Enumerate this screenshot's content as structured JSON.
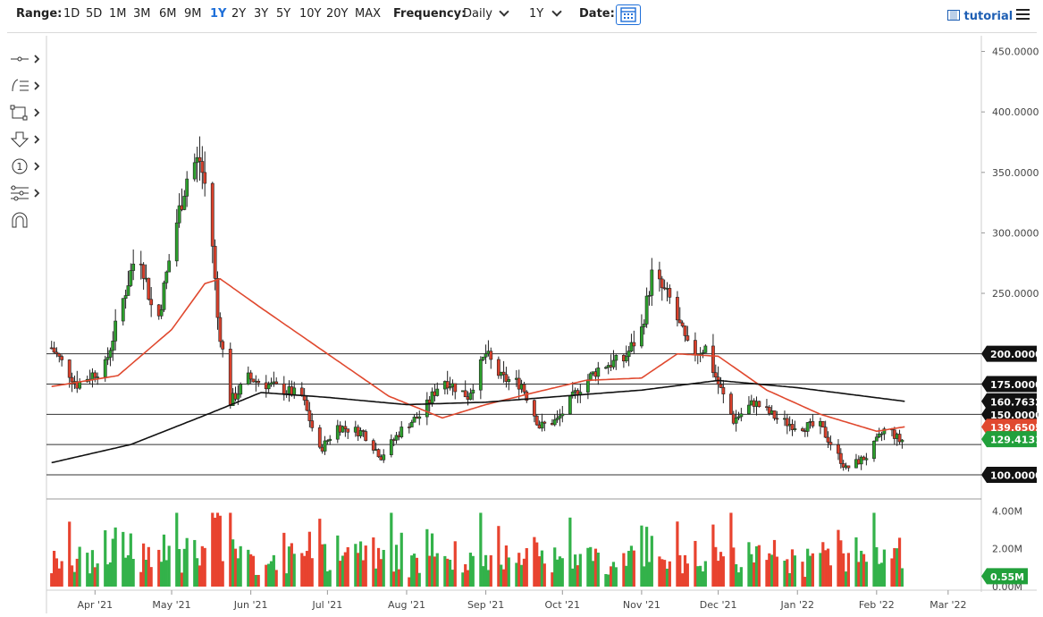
{
  "toolbar": {
    "range_label": "Range:",
    "ranges": [
      "1D",
      "5D",
      "1M",
      "3M",
      "6M",
      "9M",
      "1Y",
      "2Y",
      "3Y",
      "5Y",
      "10Y",
      "20Y",
      "MAX"
    ],
    "active_range": "1Y",
    "frequency_label": "Frequency:",
    "frequency_value": "Daily",
    "period_value": "1Y",
    "date_label": "Date:",
    "tutorial_label": "tutorial"
  },
  "tools": [
    "crosshair-tool",
    "line-tools",
    "shape-tools",
    "arrow-tools",
    "counter-tools",
    "fib-tools",
    "magnet-tool"
  ],
  "chart_data": {
    "type": "candlestick",
    "x_tick_labels": [
      "Apr '21",
      "May '21",
      "Jun '21",
      "Jul '21",
      "Aug '21",
      "Sep '21",
      "Oct '21",
      "Nov '21",
      "Dec '21",
      "Jan '22",
      "Feb '22",
      "Mar '22"
    ],
    "x_tick_dates": [
      "2021-04-01",
      "2021-05-01",
      "2021-06-01",
      "2021-07-01",
      "2021-08-01",
      "2021-09-01",
      "2021-10-01",
      "2021-11-01",
      "2021-12-01",
      "2022-01-01",
      "2022-02-01",
      "2022-03-01"
    ],
    "x_range": [
      "2021-03-13",
      "2022-03-14"
    ],
    "price_axis": {
      "ticks": [
        "450.0000",
        "400.0000",
        "350.0000",
        "300.0000",
        "250.0000",
        "150.0000"
      ],
      "range": [
        80,
        460
      ]
    },
    "horizontal_levels": [
      {
        "value": 200,
        "label": "200.0000"
      },
      {
        "value": 175,
        "label": "175.0000"
      },
      {
        "value": 150,
        "label": "150.0000"
      },
      {
        "value": 125,
        "label": ""
      },
      {
        "value": 100,
        "label": "100.0000"
      }
    ],
    "price_markers": [
      {
        "value": 160.7632,
        "label": "160.7632",
        "style": "dark"
      },
      {
        "value": 139.6505,
        "label": "139.6505",
        "style": "red"
      },
      {
        "value": 129.4131,
        "label": "129.4131",
        "style": "green"
      }
    ],
    "close_anchors": [
      [
        "2021-03-15",
        205
      ],
      [
        "2021-03-25",
        175
      ],
      [
        "2021-04-05",
        190
      ],
      [
        "2021-04-12",
        245
      ],
      [
        "2021-04-18",
        290
      ],
      [
        "2021-04-25",
        220
      ],
      [
        "2021-05-02",
        300
      ],
      [
        "2021-05-08",
        355
      ],
      [
        "2021-05-12",
        360
      ],
      [
        "2021-05-16",
        320
      ],
      [
        "2021-05-19",
        230
      ],
      [
        "2021-05-24",
        160
      ],
      [
        "2021-05-31",
        180
      ],
      [
        "2021-06-07",
        175
      ],
      [
        "2021-06-14",
        170
      ],
      [
        "2021-06-21",
        165
      ],
      [
        "2021-06-28",
        120
      ],
      [
        "2021-07-05",
        140
      ],
      [
        "2021-07-15",
        135
      ],
      [
        "2021-07-22",
        115
      ],
      [
        "2021-07-31",
        140
      ],
      [
        "2021-08-07",
        150
      ],
      [
        "2021-08-15",
        180
      ],
      [
        "2021-08-25",
        165
      ],
      [
        "2021-09-01",
        200
      ],
      [
        "2021-09-07",
        180
      ],
      [
        "2021-09-15",
        175
      ],
      [
        "2021-09-22",
        140
      ],
      [
        "2021-09-29",
        145
      ],
      [
        "2021-10-07",
        170
      ],
      [
        "2021-10-16",
        190
      ],
      [
        "2021-10-25",
        195
      ],
      [
        "2021-11-01",
        220
      ],
      [
        "2021-11-05",
        265
      ],
      [
        "2021-11-12",
        245
      ],
      [
        "2021-11-20",
        200
      ],
      [
        "2021-11-26",
        205
      ],
      [
        "2021-12-01",
        175
      ],
      [
        "2021-12-07",
        145
      ],
      [
        "2021-12-15",
        160
      ],
      [
        "2021-12-25",
        145
      ],
      [
        "2022-01-01",
        140
      ],
      [
        "2022-01-10",
        140
      ],
      [
        "2022-01-20",
        105
      ],
      [
        "2022-01-28",
        115
      ],
      [
        "2022-02-05",
        140
      ],
      [
        "2022-02-10",
        128
      ],
      [
        "2022-02-12",
        129.4
      ]
    ],
    "sma50_anchors": [
      [
        "2021-03-15",
        173
      ],
      [
        "2021-04-10",
        182
      ],
      [
        "2021-05-01",
        220
      ],
      [
        "2021-05-14",
        258
      ],
      [
        "2021-05-20",
        262
      ],
      [
        "2021-06-05",
        238
      ],
      [
        "2021-07-01",
        200
      ],
      [
        "2021-07-25",
        165
      ],
      [
        "2021-08-15",
        147
      ],
      [
        "2021-09-01",
        158
      ],
      [
        "2021-09-20",
        168
      ],
      [
        "2021-10-10",
        178
      ],
      [
        "2021-11-01",
        180
      ],
      [
        "2021-11-15",
        200
      ],
      [
        "2021-12-01",
        198
      ],
      [
        "2021-12-20",
        170
      ],
      [
        "2022-01-10",
        150
      ],
      [
        "2022-02-01",
        136
      ],
      [
        "2022-02-12",
        139.65
      ]
    ],
    "sma200_anchors": [
      [
        "2021-03-15",
        110
      ],
      [
        "2021-04-15",
        125
      ],
      [
        "2021-05-15",
        150
      ],
      [
        "2021-06-05",
        168
      ],
      [
        "2021-07-01",
        164
      ],
      [
        "2021-08-01",
        158
      ],
      [
        "2021-09-01",
        160
      ],
      [
        "2021-10-01",
        165
      ],
      [
        "2021-11-01",
        170
      ],
      [
        "2021-12-01",
        178
      ],
      [
        "2022-01-01",
        172
      ],
      [
        "2022-02-12",
        160.76
      ]
    ],
    "volume_axis": {
      "ticks": [
        "4.00M",
        "2.00M",
        "0.00M"
      ],
      "range": [
        0,
        4.3
      ]
    },
    "volume_marker": {
      "value": 0.55,
      "label": "0.55M"
    }
  }
}
